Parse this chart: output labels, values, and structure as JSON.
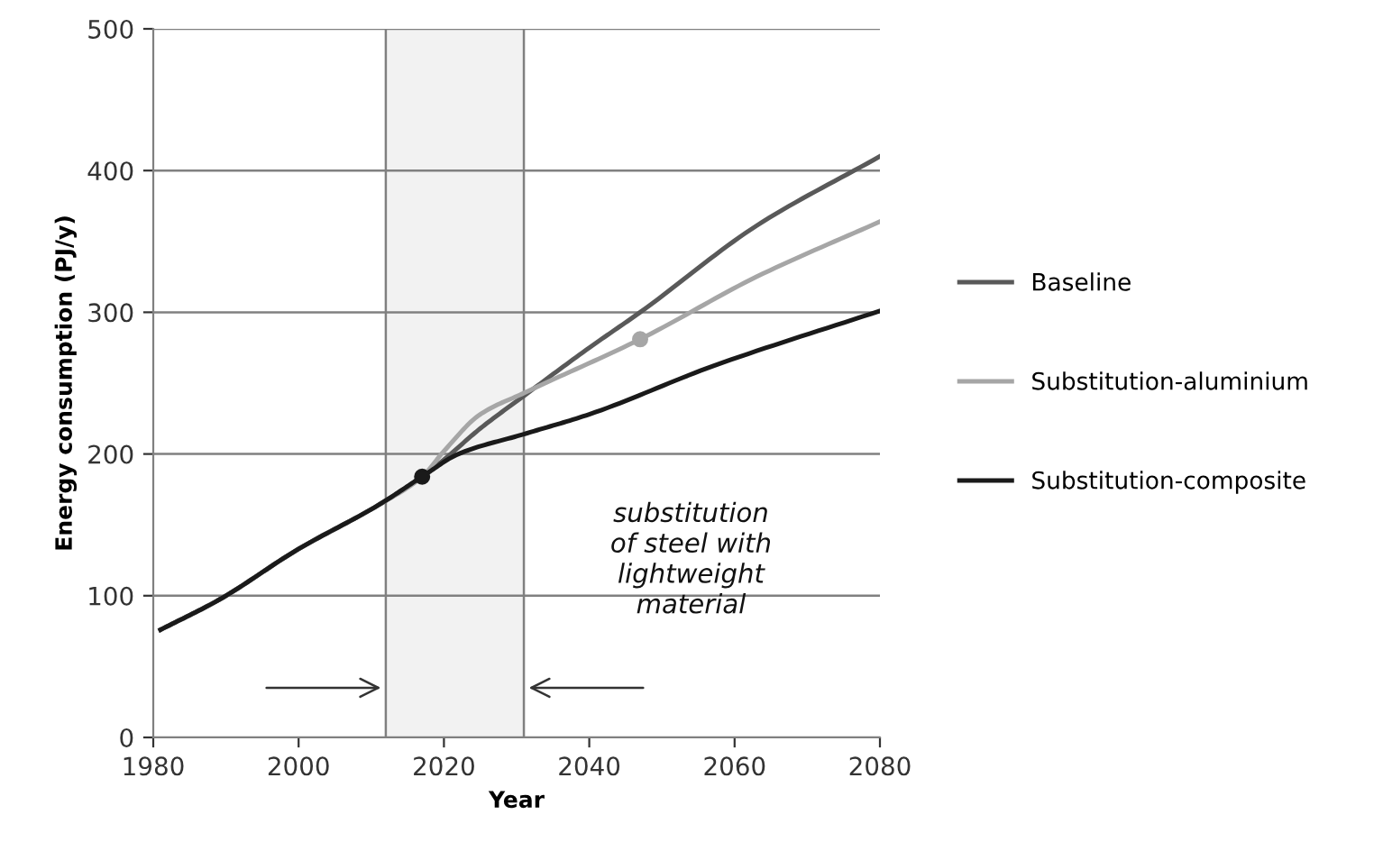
{
  "chart_data": {
    "type": "line",
    "xlabel": "Year",
    "ylabel": "Energy consumption (PJ/y)",
    "xlim": [
      1980,
      2080
    ],
    "xticks": [
      1980,
      2000,
      2020,
      2040,
      2060,
      2080
    ],
    "ylim": [
      0,
      500
    ],
    "yticks": [
      0,
      100,
      200,
      300,
      400,
      500
    ],
    "grid": "y",
    "legend": "right",
    "marker": "none",
    "line_style": "solid",
    "series": [
      {
        "name": "Baseline",
        "color": "#595959",
        "x": [
          1981,
          1989,
          2000,
          2011,
          2017,
          2020,
          2025,
          2031,
          2040,
          2047,
          2063,
          2080
        ],
        "values": [
          76,
          97,
          133,
          164,
          184,
          196,
          218,
          241,
          275,
          300,
          361,
          410
        ]
      },
      {
        "name": "Substitution-aluminium",
        "color": "#a6a6a6",
        "x": [
          1981,
          1989,
          2000,
          2011,
          2017,
          2020,
          2025,
          2031,
          2047,
          2063,
          2080
        ],
        "values": [
          76,
          97,
          133,
          164,
          184,
          202,
          228,
          243,
          281,
          325,
          364
        ]
      },
      {
        "name": "Substitution-composite",
        "color": "#1a1a1a",
        "x": [
          1981,
          1989,
          2000,
          2011,
          2017,
          2022,
          2031,
          2040,
          2057,
          2080
        ],
        "values": [
          76,
          97,
          133,
          164,
          184,
          200,
          214,
          228,
          262,
          301
        ]
      },
      {
        "type": "scatter",
        "marker": "circle",
        "color": "#1a1a1a",
        "x": [
          2017
        ],
        "values": [
          184
        ]
      },
      {
        "type": "scatter",
        "marker": "circle",
        "color": "#a6a6a6",
        "x": [
          2047
        ],
        "values": [
          281
        ]
      }
    ],
    "bands": [
      {
        "axis": "x",
        "from": 2012,
        "to": 2031,
        "color": "#f2f2f2"
      }
    ],
    "annotations": [
      "substitution\nof steel with\nlightweight\nmaterial"
    ]
  }
}
